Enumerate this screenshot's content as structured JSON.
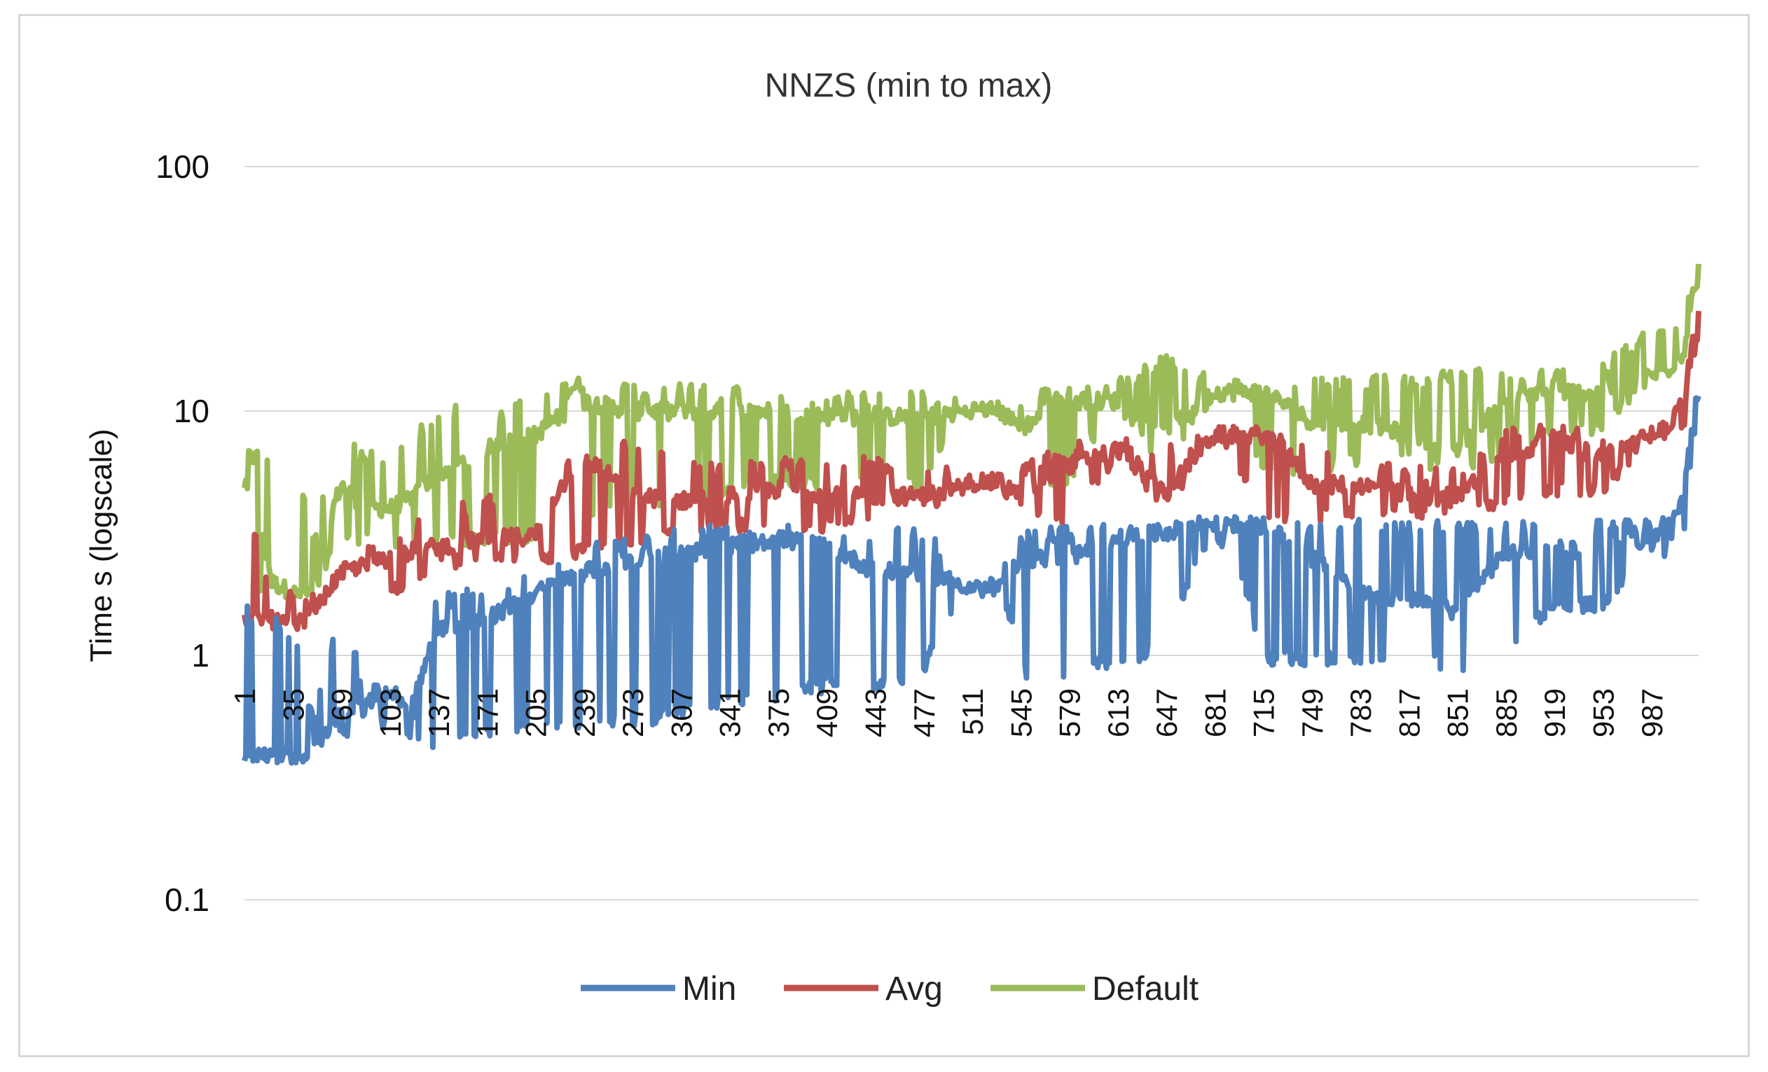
{
  "chart_data": {
    "type": "line",
    "title": "NNZS (min to max)",
    "xlabel": "",
    "ylabel": "Time s (logscale)",
    "yscale": "log",
    "ylim": [
      0.1,
      100
    ],
    "y_ticks": [
      {
        "value": 0.1,
        "label": "0.1"
      },
      {
        "value": 1,
        "label": "1"
      },
      {
        "value": 10,
        "label": "10"
      },
      {
        "value": 100,
        "label": "100"
      }
    ],
    "x_range": [
      1,
      1020
    ],
    "x_ticks": [
      "1",
      "35",
      "69",
      "103",
      "137",
      "171",
      "205",
      "239",
      "273",
      "307",
      "341",
      "375",
      "409",
      "443",
      "477",
      "511",
      "545",
      "579",
      "613",
      "647",
      "681",
      "715",
      "749",
      "783",
      "817",
      "851",
      "885",
      "919",
      "953",
      "987"
    ],
    "legend_position": "bottom",
    "colors": {
      "Min": "#4f81bd",
      "Avg": "#c0504d",
      "Default": "#9bbb59",
      "grid": "#d9d9d9"
    },
    "series": [
      {
        "name": "Min",
        "x": [
          1,
          20,
          35,
          50,
          69,
          85,
          103,
          120,
          137,
          171,
          205,
          239,
          273,
          307,
          341,
          375,
          409,
          443,
          477,
          511,
          530,
          545,
          579,
          613,
          647,
          681,
          715,
          749,
          783,
          817,
          851,
          885,
          919,
          953,
          987,
          1000,
          1010,
          1020
        ],
        "base": [
          0.4,
          0.4,
          0.38,
          0.4,
          0.6,
          0.65,
          0.7,
          0.6,
          1.3,
          1.4,
          1.8,
          2.2,
          2.5,
          2.6,
          2.8,
          3.0,
          2.8,
          2.2,
          2.2,
          1.9,
          1.9,
          2.5,
          2.5,
          3.0,
          3.2,
          3.5,
          3.4,
          2.5,
          1.8,
          1.7,
          1.5,
          2.6,
          2.8,
          2.6,
          3.0,
          3.5,
          4.5,
          12
        ],
        "low": [
          0.36,
          0.36,
          0.35,
          0.37,
          0.45,
          0.5,
          0.5,
          0.42,
          0.42,
          0.45,
          0.5,
          0.5,
          0.5,
          0.55,
          0.6,
          0.65,
          0.7,
          0.7,
          0.8,
          1.8,
          1.8,
          0.8,
          0.8,
          0.9,
          1.0,
          3.0,
          0.9,
          0.9,
          0.9,
          0.9,
          0.85,
          1.0,
          1.5,
          1.5,
          2.4,
          2.6,
          3.0,
          10
        ],
        "high": [
          1.6,
          1.6,
          1.3,
          0.5,
          1.6,
          0.75,
          0.8,
          0.7,
          1.8,
          2.0,
          2.2,
          2.8,
          3.2,
          3.4,
          3.4,
          3.5,
          3.5,
          3.4,
          3.4,
          2.0,
          2.0,
          3.4,
          3.4,
          3.5,
          3.6,
          3.8,
          3.6,
          3.6,
          3.6,
          3.5,
          3.6,
          3.6,
          3.6,
          3.6,
          3.6,
          3.8,
          5.0,
          12
        ]
      },
      {
        "name": "Avg",
        "x": [
          1,
          20,
          35,
          50,
          69,
          85,
          103,
          120,
          137,
          171,
          205,
          239,
          273,
          307,
          341,
          375,
          409,
          443,
          477,
          511,
          530,
          545,
          579,
          613,
          647,
          681,
          715,
          749,
          783,
          817,
          851,
          885,
          919,
          953,
          987,
          1000,
          1010,
          1020
        ],
        "base": [
          1.4,
          1.4,
          1.3,
          1.5,
          2.2,
          2.4,
          2.5,
          2.7,
          2.8,
          3.0,
          3.1,
          6.5,
          4.5,
          4.3,
          4.5,
          4.8,
          4.6,
          4.5,
          4.5,
          5.0,
          5.2,
          4.5,
          6.0,
          7.0,
          4.5,
          8.0,
          8.0,
          5.0,
          5.0,
          4.5,
          4.5,
          6.5,
          7.5,
          6.5,
          8.0,
          8.5,
          9.5,
          26
        ],
        "low": [
          1.3,
          1.3,
          1.2,
          1.4,
          2.0,
          2.2,
          1.7,
          2.0,
          2.2,
          2.3,
          2.3,
          2.5,
          2.8,
          3.0,
          3.2,
          3.2,
          3.2,
          3.3,
          3.3,
          4.8,
          4.8,
          3.4,
          3.5,
          6.0,
          3.5,
          7.5,
          3.4,
          3.5,
          3.6,
          3.6,
          3.6,
          4.0,
          4.5,
          4.5,
          7.0,
          7.5,
          8.5,
          20
        ],
        "high": [
          4.0,
          2.0,
          1.8,
          1.8,
          2.8,
          2.8,
          2.8,
          3.5,
          4.0,
          4.5,
          5.0,
          8.0,
          7.5,
          6.5,
          6.0,
          6.5,
          6.5,
          6.5,
          6.5,
          5.5,
          5.5,
          6.0,
          7.5,
          7.8,
          7.5,
          8.5,
          8.5,
          7.0,
          6.5,
          6.0,
          6.0,
          8.5,
          9.0,
          8.5,
          9.0,
          9.5,
          12,
          26
        ]
      },
      {
        "name": "Default",
        "x": [
          1,
          20,
          35,
          50,
          69,
          85,
          103,
          120,
          137,
          171,
          205,
          239,
          273,
          307,
          341,
          375,
          409,
          443,
          477,
          511,
          530,
          545,
          579,
          613,
          647,
          681,
          715,
          749,
          783,
          817,
          851,
          885,
          919,
          953,
          987,
          1000,
          1010,
          1020
        ],
        "base": [
          5.0,
          2.0,
          1.8,
          1.8,
          5.0,
          4.0,
          4.0,
          4.5,
          5.5,
          7.0,
          8.0,
          11,
          10,
          10,
          10,
          10,
          9.5,
          9.5,
          9.5,
          10,
          10,
          8.5,
          11,
          11,
          8.0,
          12,
          12,
          9.0,
          9.0,
          8.0,
          7.0,
          11,
          12,
          12,
          14,
          15,
          18,
          38
        ],
        "low": [
          1.8,
          1.7,
          1.6,
          1.7,
          2.8,
          2.8,
          2.6,
          2.7,
          2.7,
          2.8,
          2.9,
          3.5,
          3.8,
          4.0,
          4.5,
          4.8,
          4.8,
          4.8,
          4.8,
          9.5,
          9.5,
          4.5,
          5.0,
          10,
          5.0,
          11,
          5.5,
          5.5,
          6.0,
          6.0,
          5.5,
          6.5,
          7.5,
          8.0,
          13,
          14,
          16,
          30
        ],
        "high": [
          7.0,
          7.0,
          6.5,
          3.0,
          8.0,
          7.0,
          6.5,
          8.0,
          11,
          10,
          12,
          14,
          13,
          13,
          13,
          12,
          12,
          12,
          12,
          11,
          11,
          12,
          13,
          14,
          17,
          14,
          14,
          14,
          14,
          14,
          15,
          15,
          15,
          16,
          22,
          23,
          28,
          38
        ]
      }
    ]
  }
}
